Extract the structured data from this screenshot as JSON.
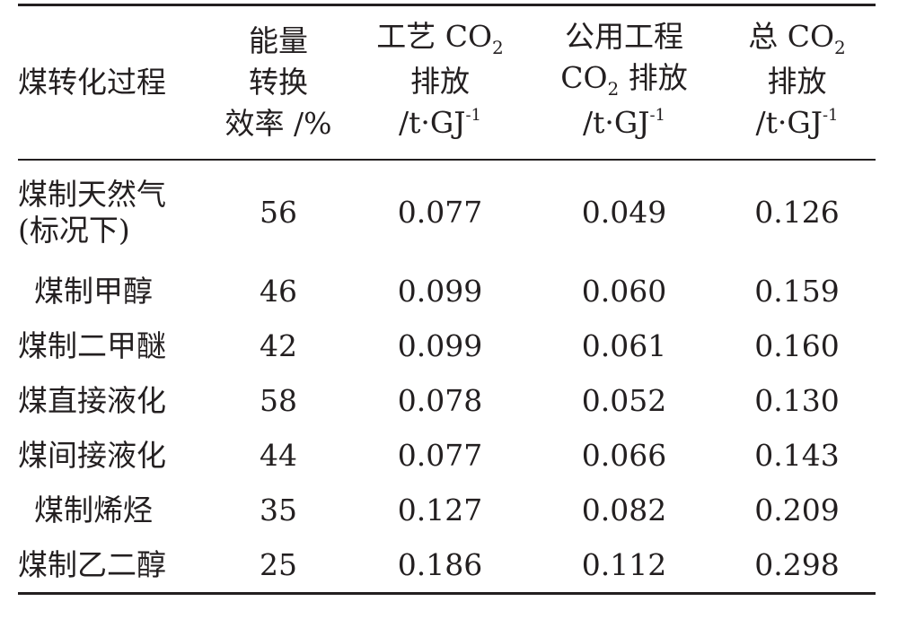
{
  "table": {
    "headers": {
      "process": "煤转化过程",
      "efficiency": [
        "能量",
        "转换",
        "效率 /%"
      ],
      "process_co2": {
        "line1_pre": "工艺 CO",
        "line1_sub": "2",
        "line2": "排放",
        "unit_pre": "/t·GJ",
        "unit_sup": "-1"
      },
      "utility_co2": {
        "line1": "公用工程",
        "line2_pre": "CO",
        "line2_sub": "2",
        "line2_post": " 排放",
        "unit_pre": "/t·GJ",
        "unit_sup": "-1"
      },
      "total_co2": {
        "line1_pre": "总 CO",
        "line1_sub": "2",
        "line2": "排放",
        "unit_pre": "/t·GJ",
        "unit_sup": "-1"
      }
    },
    "rows": [
      {
        "name_lines": [
          "煤制天然气",
          "(标况下)"
        ],
        "efficiency": "56",
        "process": "0.077",
        "utility": "0.049",
        "total": "0.126"
      },
      {
        "name": "煤制甲醇",
        "efficiency": "46",
        "process": "0.099",
        "utility": "0.060",
        "total": "0.159"
      },
      {
        "name": "煤制二甲醚",
        "efficiency": "42",
        "process": "0.099",
        "utility": "0.061",
        "total": "0.160"
      },
      {
        "name": "煤直接液化",
        "efficiency": "58",
        "process": "0.078",
        "utility": "0.052",
        "total": "0.130"
      },
      {
        "name": "煤间接液化",
        "efficiency": "44",
        "process": "0.077",
        "utility": "0.066",
        "total": "0.143"
      },
      {
        "name": "煤制烯烃",
        "efficiency": "35",
        "process": "0.127",
        "utility": "0.082",
        "total": "0.209"
      },
      {
        "name": "煤制乙二醇",
        "efficiency": "25",
        "process": "0.186",
        "utility": "0.112",
        "total": "0.298"
      }
    ]
  }
}
